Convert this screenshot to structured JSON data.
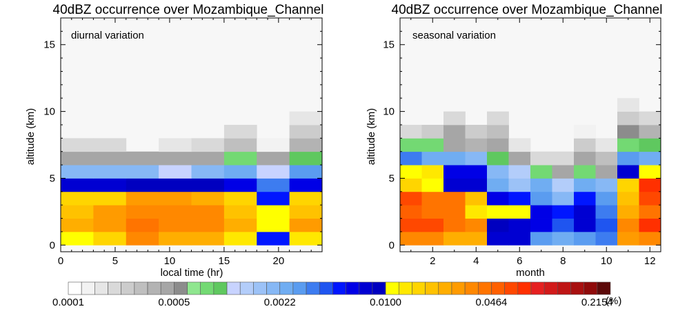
{
  "palette": [
    "#ffffff",
    "#f2f2f2",
    "#e6e6e6",
    "#d9d9d9",
    "#cccccc",
    "#bfbfbf",
    "#b3b3b3",
    "#a6a6a6",
    "#8c8c8c",
    "#8fe68f",
    "#73d973",
    "#5fc85f",
    "#c8d3ff",
    "#b3cdfa",
    "#9cc2f7",
    "#87b8f5",
    "#70adf2",
    "#5a9cf0",
    "#3d7cf0",
    "#1f55f0",
    "#0016ff",
    "#0000e6",
    "#0000d2",
    "#0000c0",
    "#ffff00",
    "#ffe800",
    "#ffd500",
    "#ffc200",
    "#ffae00",
    "#ff9b00",
    "#ff8800",
    "#ff7400",
    "#ff6000",
    "#ff4800",
    "#ff3000",
    "#e62020",
    "#d21a1a",
    "#bf1515",
    "#a81010",
    "#8f0a0a",
    "#5c0a0a"
  ],
  "colorbar": {
    "tick_labels": [
      "0.0001",
      "0.0005",
      "0.0022",
      "0.0100",
      "0.0464",
      "0.2154"
    ],
    "tick_index": [
      0,
      8,
      16,
      24,
      32,
      40
    ],
    "unit": "(%)"
  },
  "chart_data": [
    {
      "type": "heatmap",
      "title": "40dBZ occurrence over Mozambique_Channel",
      "annotation": "diurnal variation",
      "xlabel": "local time (hr)",
      "ylabel": "altitude (km)",
      "xlim": [
        0,
        24
      ],
      "ylim": [
        -0.5,
        17
      ],
      "xticks": [
        0,
        5,
        10,
        15,
        20
      ],
      "xtick_labels": [
        "0",
        "5",
        "10",
        "15",
        "20"
      ],
      "yticks": [
        0,
        5,
        10,
        15
      ],
      "ytick_labels": [
        "0",
        "5",
        "10",
        "15"
      ],
      "x_bin_edges": [
        0,
        3,
        6,
        9,
        12,
        15,
        18,
        21,
        24
      ],
      "y_bin_edges": [
        0,
        1,
        2,
        3,
        4,
        5,
        6,
        7,
        8,
        9,
        10,
        11,
        12,
        13,
        14,
        15,
        16,
        17
      ],
      "z_is_color_index": true,
      "z": [
        [
          24,
          26,
          30,
          28,
          28,
          25,
          20,
          25
        ],
        [
          28,
          29,
          31,
          30,
          30,
          28,
          24,
          29
        ],
        [
          27,
          29,
          30,
          30,
          30,
          27,
          24,
          27
        ],
        [
          26,
          26,
          29,
          29,
          28,
          26,
          20,
          26
        ],
        [
          22,
          22,
          23,
          23,
          23,
          21,
          18,
          21
        ],
        [
          15,
          15,
          15,
          12,
          15,
          16,
          12,
          17
        ],
        [
          7,
          7,
          7,
          7,
          7,
          10,
          7,
          11
        ],
        [
          3,
          3,
          null,
          2,
          3,
          5,
          1,
          6
        ],
        [
          null,
          null,
          null,
          null,
          null,
          3,
          null,
          4
        ],
        [
          null,
          null,
          null,
          null,
          null,
          null,
          null,
          2
        ],
        [
          null,
          null,
          null,
          null,
          null,
          null,
          null,
          null
        ],
        [
          null,
          null,
          null,
          null,
          null,
          null,
          null,
          null
        ],
        [
          null,
          null,
          null,
          null,
          null,
          null,
          null,
          null
        ],
        [
          null,
          null,
          null,
          null,
          null,
          null,
          null,
          null
        ],
        [
          null,
          null,
          null,
          null,
          null,
          null,
          null,
          null
        ],
        [
          null,
          null,
          null,
          null,
          null,
          null,
          null,
          null
        ],
        [
          null,
          null,
          null,
          null,
          null,
          null,
          null,
          null
        ]
      ]
    },
    {
      "type": "heatmap",
      "title": "40dBZ occurrence over Mozambique_Channel",
      "annotation": "seasonal variation",
      "xlabel": "month",
      "ylabel": "altitude (km)",
      "xlim": [
        0.5,
        12.5
      ],
      "ylim": [
        -0.5,
        17
      ],
      "xticks": [
        2,
        4,
        6,
        8,
        10,
        12
      ],
      "xtick_labels": [
        "2",
        "4",
        "6",
        "8",
        "10",
        "12"
      ],
      "yticks": [
        0,
        5,
        10,
        15
      ],
      "ytick_labels": [
        "0",
        "5",
        "10",
        "15"
      ],
      "x_bin_edges": [
        0.5,
        1.5,
        2.5,
        3.5,
        4.5,
        5.5,
        6.5,
        7.5,
        8.5,
        9.5,
        10.5,
        11.5,
        12.5
      ],
      "y_bin_edges": [
        0,
        1,
        2,
        3,
        4,
        5,
        6,
        7,
        8,
        9,
        10,
        11,
        12,
        13,
        14,
        15,
        16,
        17
      ],
      "z_is_color_index": true,
      "z": [
        [
          30,
          30,
          28,
          28,
          22,
          22,
          17,
          16,
          17,
          18,
          29,
          30
        ],
        [
          33,
          33,
          31,
          30,
          23,
          22,
          21,
          19,
          22,
          19,
          30,
          34
        ],
        [
          32,
          31,
          31,
          25,
          24,
          24,
          21,
          20,
          22,
          18,
          28,
          31
        ],
        [
          33,
          31,
          31,
          27,
          21,
          20,
          17,
          15,
          20,
          17,
          27,
          33
        ],
        [
          26,
          24,
          22,
          22,
          16,
          14,
          16,
          13,
          16,
          15,
          26,
          34
        ],
        [
          24,
          25,
          21,
          21,
          15,
          13,
          10,
          7,
          10,
          7,
          22,
          24
        ],
        [
          18,
          16,
          16,
          15,
          11,
          7,
          3,
          3,
          7,
          5,
          17,
          16
        ],
        [
          10,
          10,
          7,
          6,
          7,
          2,
          null,
          null,
          4,
          2,
          10,
          11
        ],
        [
          3,
          4,
          7,
          4,
          5,
          null,
          null,
          null,
          1,
          null,
          8,
          6
        ],
        [
          null,
          null,
          3,
          null,
          3,
          null,
          null,
          null,
          null,
          null,
          4,
          3
        ],
        [
          null,
          null,
          null,
          null,
          null,
          null,
          null,
          null,
          null,
          null,
          2,
          null
        ],
        [
          null,
          null,
          null,
          null,
          null,
          null,
          null,
          null,
          null,
          null,
          null,
          null
        ],
        [
          null,
          null,
          null,
          null,
          null,
          null,
          null,
          null,
          null,
          null,
          null,
          null
        ],
        [
          null,
          null,
          null,
          null,
          null,
          null,
          null,
          null,
          null,
          null,
          null,
          null
        ],
        [
          null,
          null,
          null,
          null,
          null,
          null,
          null,
          null,
          null,
          null,
          null,
          null
        ],
        [
          null,
          null,
          null,
          null,
          null,
          null,
          null,
          null,
          null,
          null,
          null,
          null
        ],
        [
          null,
          null,
          null,
          null,
          null,
          null,
          null,
          null,
          null,
          null,
          null,
          null
        ]
      ]
    }
  ]
}
